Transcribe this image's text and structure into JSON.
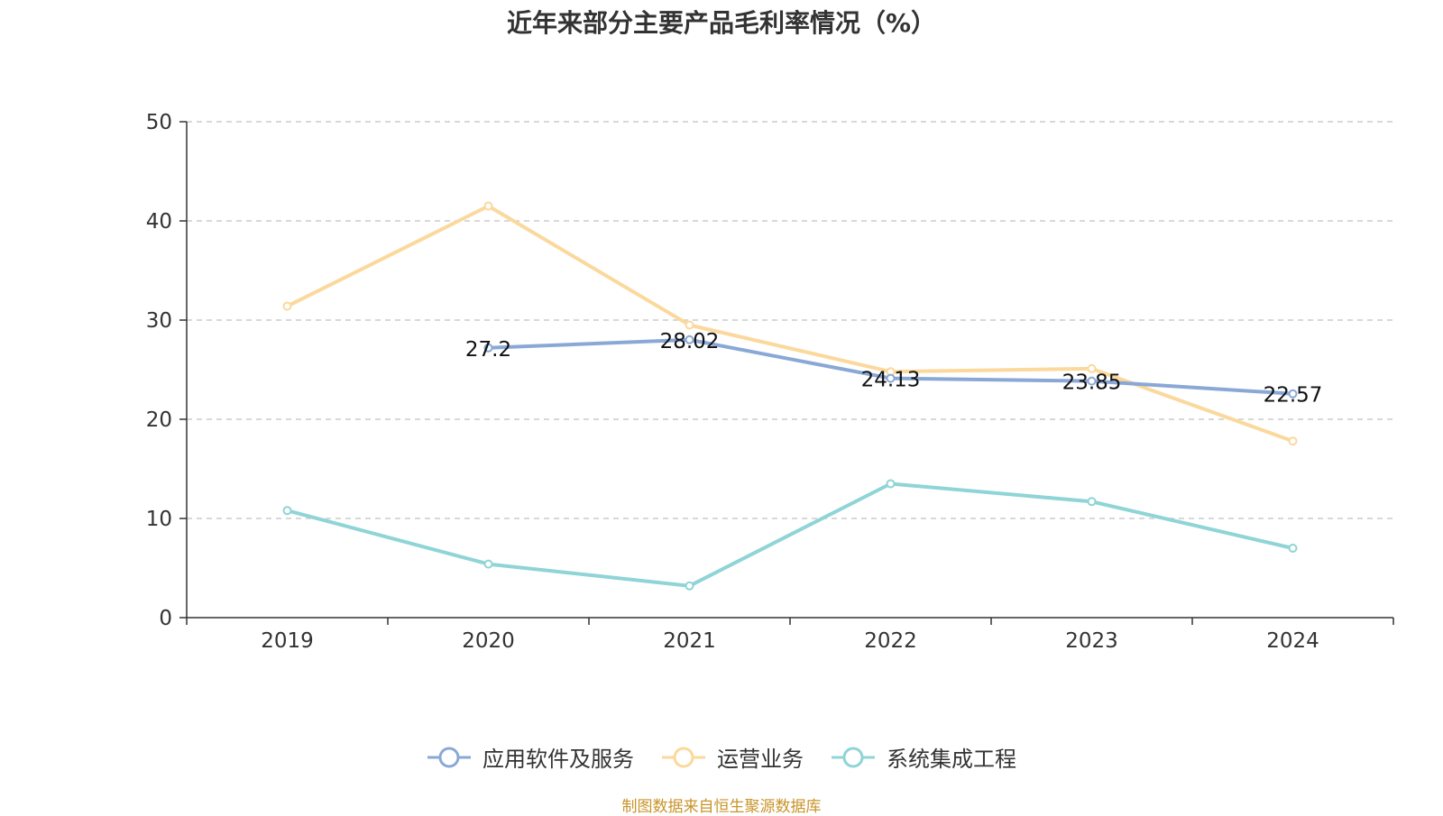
{
  "chart_data": {
    "type": "line",
    "title": "近年来部分主要产品毛利率情况（%）",
    "categories": [
      "2019",
      "2020",
      "2021",
      "2022",
      "2023",
      "2024"
    ],
    "ylim": [
      0,
      50
    ],
    "yticks": [
      "0",
      "10",
      "20",
      "30",
      "40",
      "50"
    ],
    "grid": true,
    "legend_position": "bottom",
    "series": [
      {
        "name": "应用软件及服务",
        "color": "#8aa8d6",
        "values": [
          null,
          27.2,
          28.02,
          24.13,
          23.85,
          22.57
        ],
        "labels": [
          null,
          "27.2",
          "28.02",
          "24.13",
          "23.85",
          "22.57"
        ]
      },
      {
        "name": "运营业务",
        "color": "#fbd89c",
        "values": [
          31.4,
          41.5,
          29.5,
          24.8,
          25.1,
          17.8
        ],
        "labels": [
          null,
          null,
          null,
          null,
          null,
          null
        ]
      },
      {
        "name": "系统集成工程",
        "color": "#8fd4d6",
        "values": [
          10.8,
          5.4,
          3.2,
          13.5,
          11.7,
          7.0
        ],
        "labels": [
          null,
          null,
          null,
          null,
          null,
          null
        ]
      }
    ]
  },
  "source": "制图数据来自恒生聚源数据库"
}
